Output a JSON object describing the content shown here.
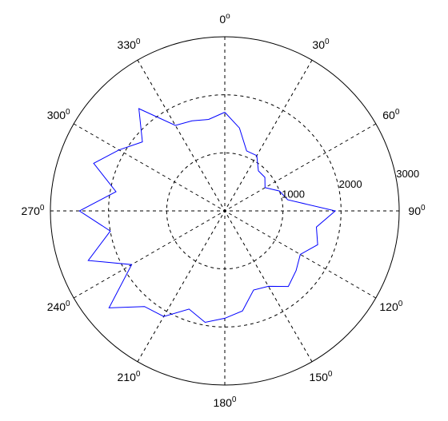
{
  "chart_data": {
    "type": "polar-line",
    "theta_zero": "top",
    "theta_direction": "clockwise",
    "r_ticks": [
      1000,
      2000,
      3000
    ],
    "r_lim": [
      0,
      3000
    ],
    "angle_ticks": [
      {
        "deg": 0,
        "text": "0",
        "sup": "o"
      },
      {
        "deg": 30,
        "text": "30",
        "sup": "0"
      },
      {
        "deg": 60,
        "text": "60",
        "sup": "0"
      },
      {
        "deg": 90,
        "text": "90",
        "sup": "0"
      },
      {
        "deg": 120,
        "text": "120",
        "sup": "0"
      },
      {
        "deg": 150,
        "text": "150",
        "sup": "0"
      },
      {
        "deg": 180,
        "text": "180",
        "sup": "0"
      },
      {
        "deg": 210,
        "text": "210",
        "sup": "0"
      },
      {
        "deg": 240,
        "text": "240",
        "sup": "0"
      },
      {
        "deg": 270,
        "text": "270",
        "sup": "0"
      },
      {
        "deg": 300,
        "text": "300",
        "sup": "0"
      },
      {
        "deg": 330,
        "text": "330",
        "sup": "0"
      }
    ],
    "series": [
      {
        "color": "#0000ff",
        "theta": [
          0,
          10,
          20,
          30,
          40,
          50,
          60,
          70,
          80,
          90,
          100,
          110,
          120,
          130,
          140,
          150,
          160,
          170,
          180,
          190,
          200,
          210,
          220,
          230,
          240,
          250,
          260,
          270,
          280,
          290,
          300,
          310,
          320,
          330,
          340,
          350,
          360
        ],
        "r": [
          1700,
          1450,
          1100,
          1100,
          900,
          900,
          800,
          1000,
          1100,
          1900,
          1600,
          1700,
          1500,
          1600,
          1700,
          1500,
          1450,
          1750,
          1850,
          1950,
          1800,
          2100,
          2150,
          2600,
          1850,
          2500,
          2000,
          2500,
          1900,
          2400,
          2100,
          1850,
          2300,
          1700,
          1650,
          1600,
          1700
        ]
      }
    ]
  }
}
